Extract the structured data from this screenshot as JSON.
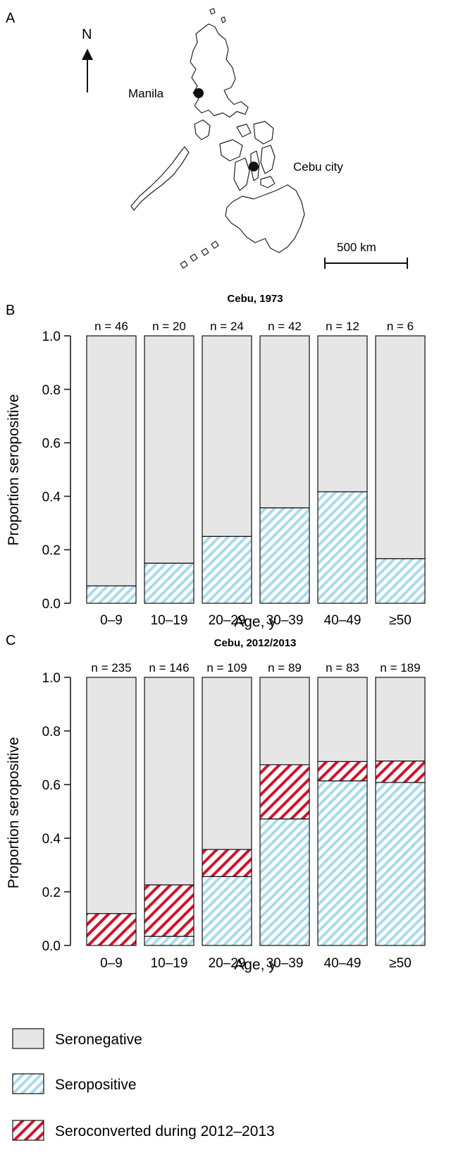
{
  "colors": {
    "seronegative": "#e6e6e6",
    "seropositive": "#a9dbea",
    "seroconverted": "#d0142b",
    "outline": "#111111"
  },
  "panel_a": {
    "letter": "A",
    "north_label": "N",
    "cities": [
      {
        "name": "Manila"
      },
      {
        "name": "Cebu city"
      }
    ],
    "scale_label": "500 km"
  },
  "chart_data": [
    {
      "type": "bar",
      "panel": "B",
      "title": "Cebu, 1973",
      "categories": [
        "0–9",
        "10–19",
        "20–29",
        "30–39",
        "40–49",
        "≥50"
      ],
      "n_labels": [
        "n = 46",
        "n = 20",
        "n = 24",
        "n = 42",
        "n = 12",
        "n = 6"
      ],
      "series": [
        {
          "name": "Seropositive",
          "values": [
            0.065,
            0.15,
            0.25,
            0.357,
            0.417,
            0.167
          ]
        },
        {
          "name": "Seroconverted during 2012–2013",
          "values": [
            0,
            0,
            0,
            0,
            0,
            0
          ]
        },
        {
          "name": "Seronegative",
          "values": [
            0.935,
            0.85,
            0.75,
            0.643,
            0.583,
            0.833
          ]
        }
      ],
      "ylabel": "Proportion seropositive",
      "xlabel": "Age, y",
      "ylim": [
        0,
        1
      ],
      "yticks": [
        "0.0",
        "0.2",
        "0.4",
        "0.6",
        "0.8",
        "1.0"
      ],
      "stacked": true
    },
    {
      "type": "bar",
      "panel": "C",
      "title": "Cebu, 2012/2013",
      "categories": [
        "0–9",
        "10–19",
        "20–29",
        "30–39",
        "40–49",
        "≥50"
      ],
      "n_labels": [
        "n = 235",
        "n = 146",
        "n = 109",
        "n = 89",
        "n = 83",
        "n = 189"
      ],
      "series": [
        {
          "name": "Seropositive",
          "values": [
            0.0,
            0.034,
            0.257,
            0.472,
            0.614,
            0.608
          ]
        },
        {
          "name": "Seroconverted during 2012–2013",
          "values": [
            0.119,
            0.192,
            0.101,
            0.202,
            0.072,
            0.08
          ]
        },
        {
          "name": "Seronegative",
          "values": [
            0.881,
            0.774,
            0.642,
            0.326,
            0.314,
            0.312
          ]
        }
      ],
      "ylabel": "Proportion seropositive",
      "xlabel": "Age, y",
      "ylim": [
        0,
        1
      ],
      "yticks": [
        "0.0",
        "0.2",
        "0.4",
        "0.6",
        "0.8",
        "1.0"
      ],
      "stacked": true
    }
  ],
  "legend": [
    {
      "key": "seronegative",
      "label": "Seronegative"
    },
    {
      "key": "seropositive",
      "label": "Seropositive"
    },
    {
      "key": "seroconverted",
      "label": "Seroconverted during 2012–2013"
    }
  ]
}
